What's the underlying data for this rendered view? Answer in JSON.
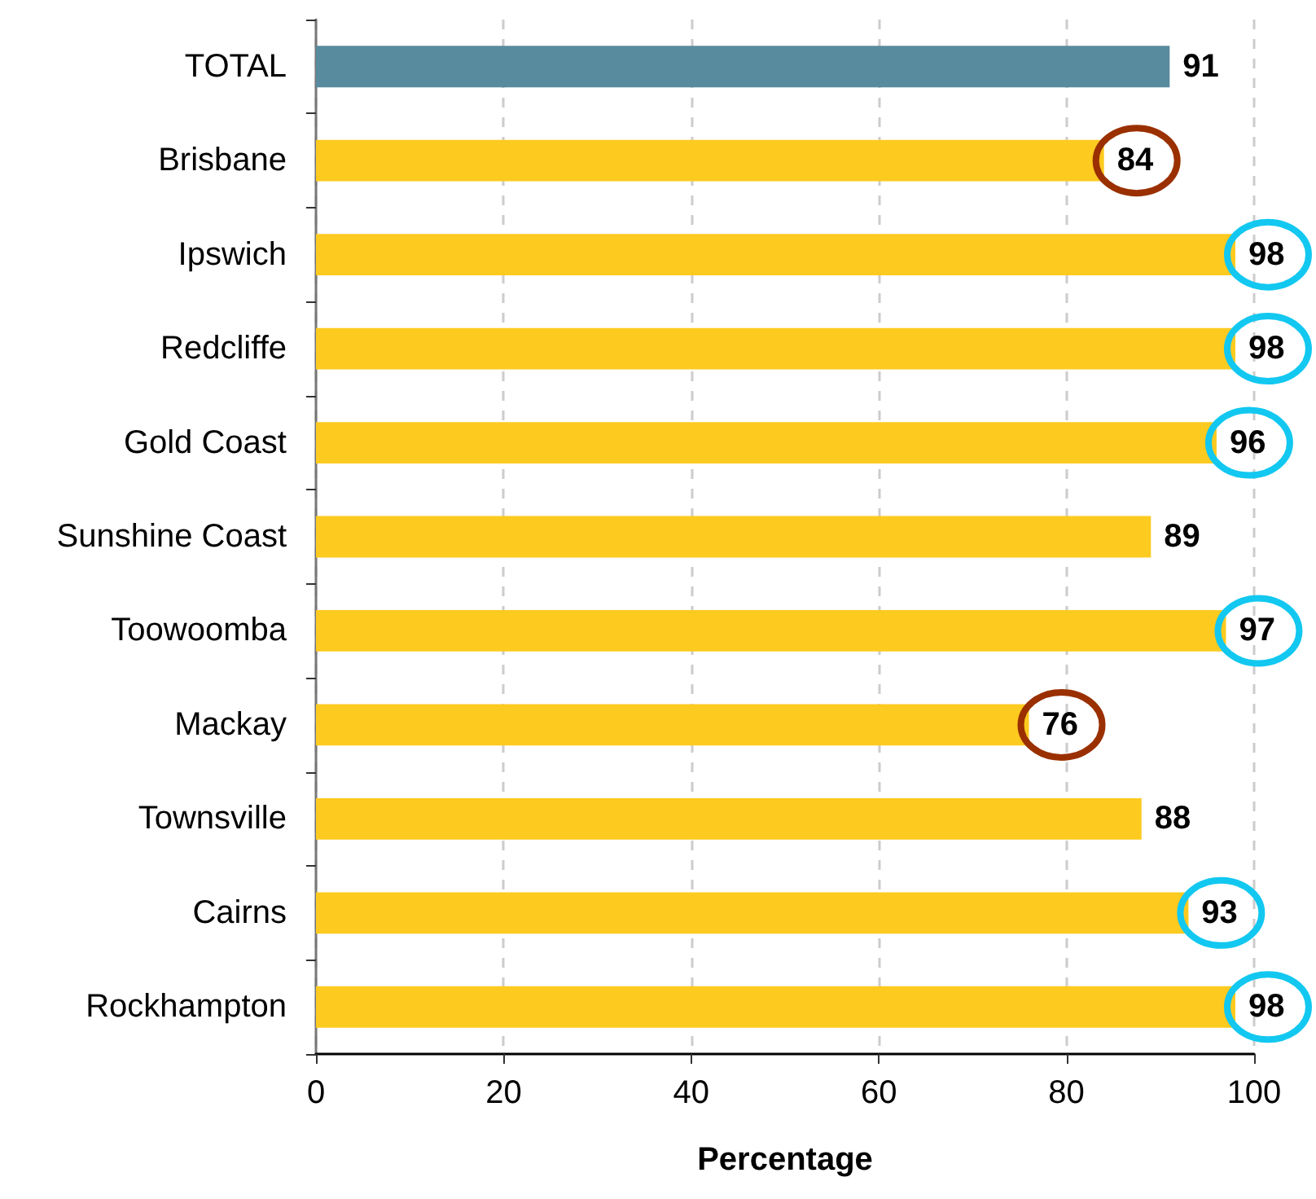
{
  "chart_data": {
    "type": "bar",
    "orientation": "horizontal",
    "xlabel": "Percentage",
    "categories": [
      "TOTAL",
      "Brisbane",
      "Ipswich",
      "Redcliffe",
      "Gold Coast",
      "Sunshine Coast",
      "Toowoomba",
      "Mackay",
      "Townsville",
      "Cairns",
      "Rockhampton"
    ],
    "values": [
      91,
      84,
      98,
      98,
      96,
      89,
      97,
      76,
      88,
      93,
      98
    ],
    "colors": [
      "#588b9e",
      "#fdca1f",
      "#fdca1f",
      "#fdca1f",
      "#fdca1f",
      "#fdca1f",
      "#fdca1f",
      "#fdca1f",
      "#fdca1f",
      "#fdca1f",
      "#fdca1f"
    ],
    "xlim": [
      0,
      100
    ],
    "xticks": [
      0,
      20,
      40,
      60,
      80,
      100
    ],
    "grid": "x",
    "data_labels": true
  }
}
